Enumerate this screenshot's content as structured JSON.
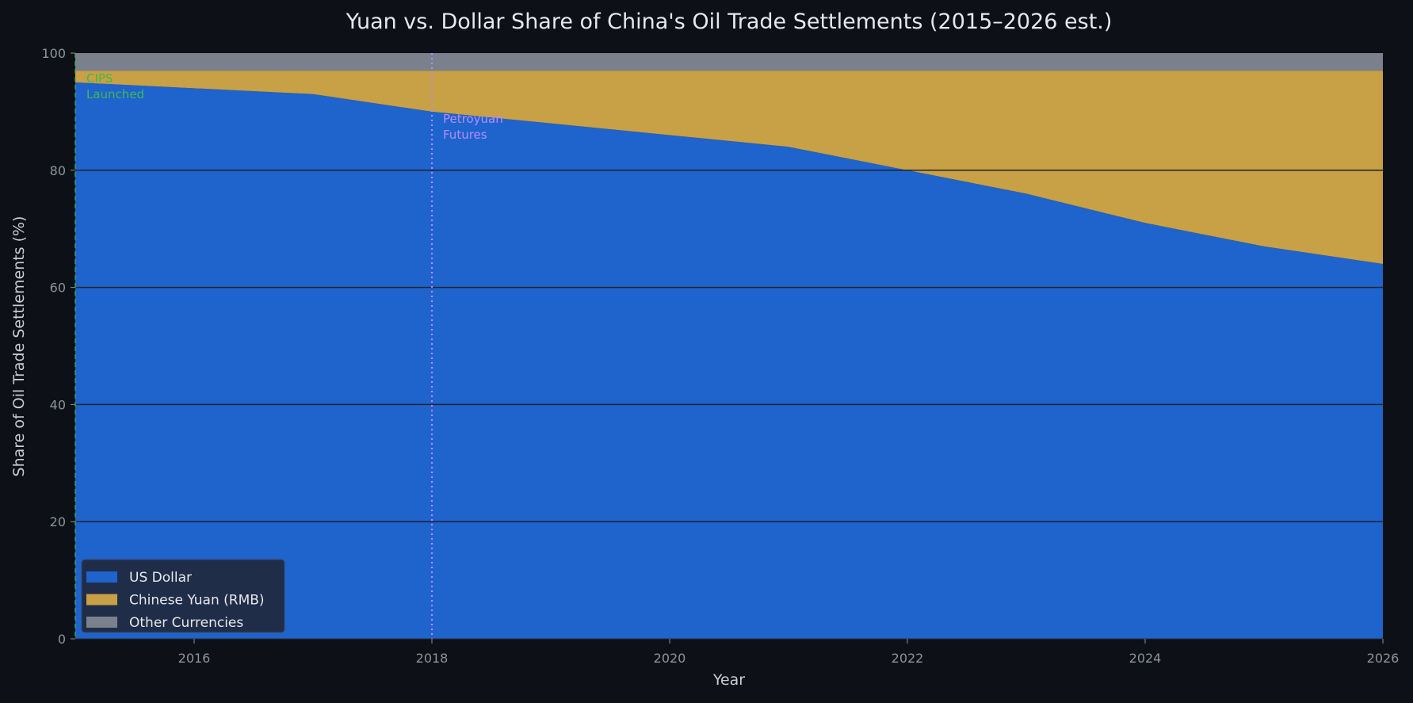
{
  "chart_data": {
    "type": "area",
    "stacked": true,
    "title": "Yuan vs. Dollar Share of China's Oil Trade Settlements (2015–2026 est.)",
    "xlabel": "Year",
    "ylabel": "Share of Oil Trade Settlements (%)",
    "xlim": [
      2015,
      2026
    ],
    "ylim": [
      0,
      100
    ],
    "x_ticks": [
      "2016",
      "2018",
      "2020",
      "2022",
      "2024",
      "2026"
    ],
    "y_ticks": [
      "0",
      "20",
      "40",
      "60",
      "80",
      "100"
    ],
    "grid": "horizontal",
    "legend_position": "lower-left",
    "x": [
      2015,
      2016,
      2017,
      2018,
      2019,
      2020,
      2021,
      2022,
      2023,
      2024,
      2025,
      2026
    ],
    "series": [
      {
        "name": "US Dollar",
        "color": "#1f63cc",
        "values": [
          95,
          94,
          93,
          90,
          88,
          86,
          84,
          80,
          76,
          71,
          67,
          64
        ]
      },
      {
        "name": "Chinese Yuan (RMB)",
        "color": "#c8a045",
        "values": [
          2,
          3,
          4,
          7,
          9,
          11,
          13,
          17,
          21,
          26,
          30,
          33
        ]
      },
      {
        "name": "Other Currencies",
        "color": "#7a818c",
        "values": [
          3,
          3,
          3,
          3,
          3,
          3,
          3,
          3,
          3,
          3,
          3,
          3
        ]
      }
    ],
    "annotations": [
      {
        "x": 2015,
        "label_lines": [
          "CIPS",
          "Launched"
        ],
        "color": "#3fb950",
        "line_style": "dashed"
      },
      {
        "x": 2018,
        "label_lines": [
          "Petroyuan",
          "Futures"
        ],
        "color": "#b48cff",
        "line_style": "dotted"
      }
    ]
  },
  "theme": {
    "background": "#0d1117",
    "plot_background": "#0d1117",
    "grid_color": "#1e232b",
    "text_color": "#e6e8eb",
    "tick_color": "#8b949e",
    "legend_background": "#1f2d48",
    "legend_border": "#3a4a66"
  }
}
